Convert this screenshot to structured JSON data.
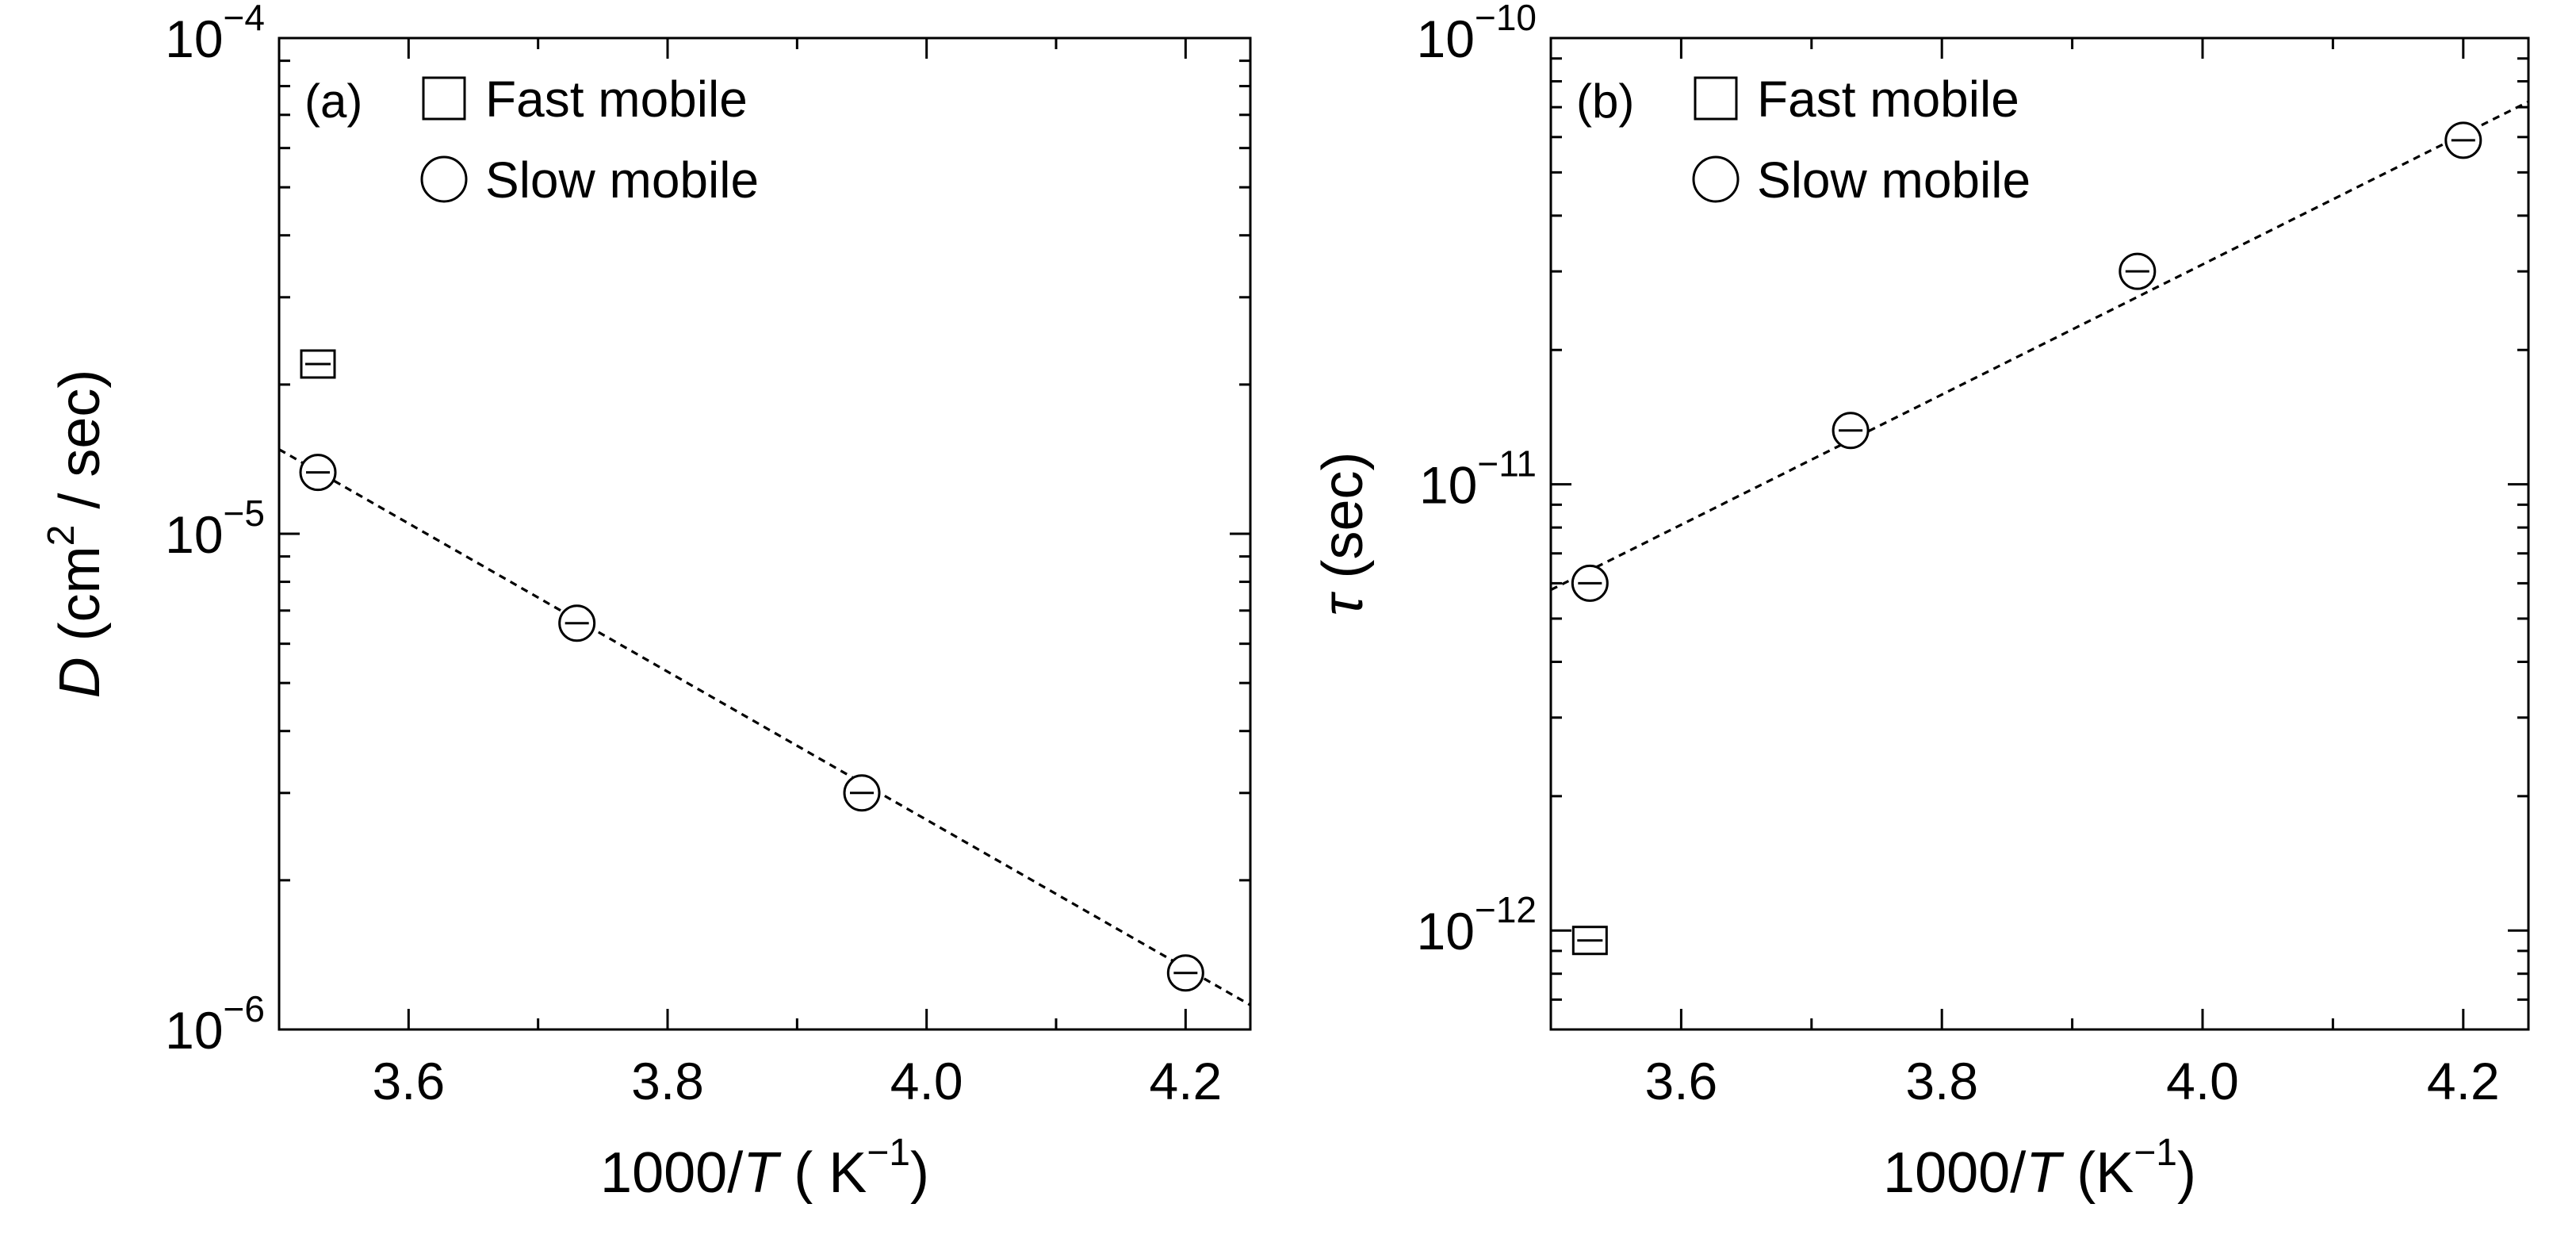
{
  "chart_data": [
    {
      "type": "scatter",
      "panel_label": "(a)",
      "xlabel": {
        "prefix": "1000/",
        "italic": "T",
        "suffix": " ( K",
        "sup": "−1",
        "close": ")"
      },
      "ylabel": {
        "italic": "D",
        "prefix": " (cm",
        "sup": "2",
        "suffix": " / sec)"
      },
      "xlim": [
        3.5,
        4.25
      ],
      "ylim": [
        1e-06,
        0.0001
      ],
      "yscale": "log",
      "xticks": [
        3.6,
        3.8,
        4.0,
        4.2
      ],
      "xtick_labels": [
        "3.6",
        "3.8",
        "4.0",
        "4.2"
      ],
      "yticks": [
        {
          "value": 1e-06,
          "base": "10",
          "exp": "−6"
        },
        {
          "value": 1e-05,
          "base": "10",
          "exp": "−5"
        },
        {
          "value": 0.0001,
          "base": "10",
          "exp": "−4"
        }
      ],
      "legend": {
        "position": "top-left",
        "entries": [
          {
            "marker": "square",
            "label": "Fast mobile"
          },
          {
            "marker": "circle",
            "label": "Slow mobile"
          }
        ]
      },
      "series": [
        {
          "name": "Fast mobile",
          "marker": "square",
          "points": [
            {
              "x": 3.53,
              "y": 2.2e-05
            }
          ]
        },
        {
          "name": "Slow mobile",
          "marker": "circle",
          "points": [
            {
              "x": 3.53,
              "y": 1.33e-05
            },
            {
              "x": 3.73,
              "y": 6.6e-06
            },
            {
              "x": 3.95,
              "y": 3e-06
            },
            {
              "x": 4.2,
              "y": 1.3e-06
            }
          ]
        }
      ],
      "fit_line": {
        "style": "dashed",
        "x": [
          3.5,
          4.25
        ],
        "y": [
          1.48e-05,
          1.12e-06
        ]
      }
    },
    {
      "type": "scatter",
      "panel_label": "(b)",
      "xlabel": {
        "prefix": "1000/",
        "italic": "T",
        "suffix": " (K",
        "sup": "−1",
        "close": ")"
      },
      "ylabel": {
        "italic": "τ",
        "prefix": "  (sec)",
        "sup": "",
        "suffix": ""
      },
      "xlim": [
        3.5,
        4.25
      ],
      "ylim": [
        6e-13,
        1e-10
      ],
      "yscale": "log",
      "xticks": [
        3.6,
        3.8,
        4.0,
        4.2
      ],
      "xtick_labels": [
        "3.6",
        "3.8",
        "4.0",
        "4.2"
      ],
      "yticks": [
        {
          "value": 1e-12,
          "base": "10",
          "exp": "−12"
        },
        {
          "value": 1e-11,
          "base": "10",
          "exp": "−11"
        },
        {
          "value": 1e-10,
          "base": "10",
          "exp": "−10"
        }
      ],
      "legend": {
        "position": "top-left",
        "entries": [
          {
            "marker": "square",
            "label": "Fast mobile"
          },
          {
            "marker": "circle",
            "label": "Slow mobile"
          }
        ]
      },
      "series": [
        {
          "name": "Fast mobile",
          "marker": "square",
          "points": [
            {
              "x": 3.53,
              "y": 9.5e-13
            }
          ]
        },
        {
          "name": "Slow mobile",
          "marker": "circle",
          "points": [
            {
              "x": 3.53,
              "y": 6e-12
            },
            {
              "x": 3.73,
              "y": 1.32e-11
            },
            {
              "x": 3.95,
              "y": 3e-11
            },
            {
              "x": 4.2,
              "y": 5.9e-11
            }
          ]
        }
      ],
      "fit_line": {
        "style": "dashed",
        "x": [
          3.5,
          4.25
        ],
        "y": [
          5.8e-12,
          7.2e-11
        ]
      }
    }
  ]
}
